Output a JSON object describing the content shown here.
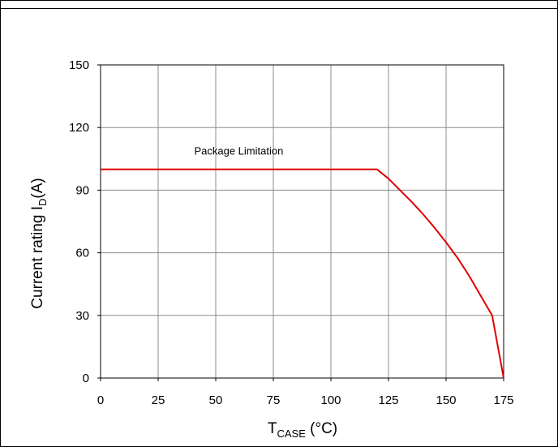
{
  "chart_data": {
    "type": "line",
    "xlabel": {
      "main": "T",
      "sub": "CASE",
      "suffix": " (°C)"
    },
    "ylabel": {
      "main": "Current rating I",
      "sub": "D",
      "suffix": "(A)"
    },
    "xlim": [
      0,
      175
    ],
    "ylim": [
      0,
      150
    ],
    "x_ticks": [
      0,
      25,
      50,
      75,
      100,
      125,
      150,
      175
    ],
    "y_ticks": [
      0,
      30,
      60,
      90,
      120,
      150
    ],
    "grid": true,
    "annotations": [
      {
        "text": "Package Limitation",
        "x": 60,
        "y": 107
      }
    ],
    "series": [
      {
        "color": "#e00000",
        "x": [
          0,
          120,
          125,
          130,
          135,
          140,
          145,
          150,
          155,
          160,
          165,
          170,
          175
        ],
        "y": [
          100,
          100,
          95.5,
          90,
          84.5,
          78.5,
          72,
          65,
          57.5,
          49,
          39.5,
          30,
          0
        ]
      }
    ]
  }
}
